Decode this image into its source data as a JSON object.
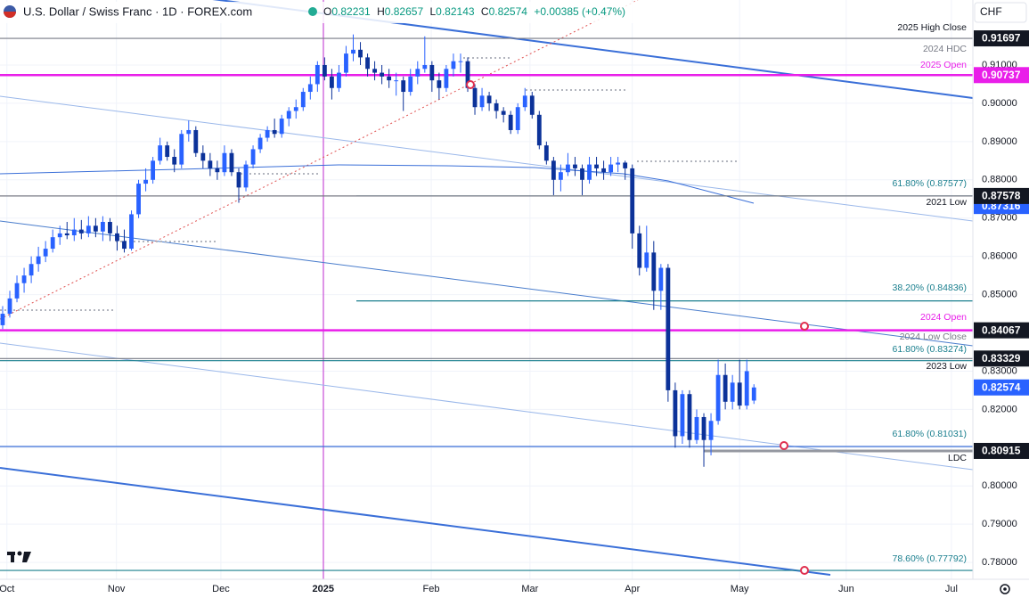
{
  "header": {
    "title": "U.S. Dollar / Swiss Franc · 1D · FOREX.com",
    "ohlc": [
      {
        "label": "O",
        "value": "0.82231"
      },
      {
        "label": "H",
        "value": "0.82657"
      },
      {
        "label": "L",
        "value": "0.82143"
      },
      {
        "label": "C",
        "value": "0.82574"
      }
    ],
    "change": "+0.00385 (+0.47%)",
    "currency": "CHF"
  },
  "chart_data": {
    "type": "candlestick",
    "up_color": "#2962ff",
    "down_color": "#0c3299",
    "grid": true,
    "ylim": [
      0.7756,
      0.927
    ],
    "yticks": [
      {
        "value": 0.91,
        "label": "0.91000"
      },
      {
        "value": 0.9,
        "label": "0.90000"
      },
      {
        "value": 0.89,
        "label": "0.89000"
      },
      {
        "value": 0.88,
        "label": "0.88000"
      },
      {
        "value": 0.87,
        "label": "0.87000"
      },
      {
        "value": 0.86,
        "label": "0.86000"
      },
      {
        "value": 0.85,
        "label": "0.85000"
      },
      {
        "value": 0.84,
        "label": "0.84000"
      },
      {
        "value": 0.83,
        "label": "0.83000"
      },
      {
        "value": 0.82,
        "label": "0.82000"
      },
      {
        "value": 0.81,
        "label": "0.81000"
      },
      {
        "value": 0.8,
        "label": "0.80000"
      },
      {
        "value": 0.79,
        "label": "0.79000"
      },
      {
        "value": 0.78,
        "label": "0.78000"
      }
    ],
    "xlim": [
      -0.37,
      135.6
    ],
    "xticks": [
      {
        "value": 0.6,
        "label": "Oct"
      },
      {
        "value": 15.9,
        "label": "Nov"
      },
      {
        "value": 30.5,
        "label": "Dec"
      },
      {
        "value": 44.8,
        "label": "2025"
      },
      {
        "value": 59.9,
        "label": "Feb"
      },
      {
        "value": 73.7,
        "label": "Mar"
      },
      {
        "value": 88.0,
        "label": "Apr"
      },
      {
        "value": 103.0,
        "label": "May"
      },
      {
        "value": 117.9,
        "label": "Jun"
      },
      {
        "value": 132.6,
        "label": "Jul"
      }
    ],
    "ohlc": [
      [
        0.842,
        0.847,
        0.841,
        0.845
      ],
      [
        0.845,
        0.851,
        0.844,
        0.849
      ],
      [
        0.849,
        0.855,
        0.848,
        0.853
      ],
      [
        0.853,
        0.857,
        0.8505,
        0.855
      ],
      [
        0.855,
        0.86,
        0.853,
        0.858
      ],
      [
        0.858,
        0.8625,
        0.856,
        0.86
      ],
      [
        0.86,
        0.864,
        0.8585,
        0.862
      ],
      [
        0.862,
        0.867,
        0.861,
        0.865
      ],
      [
        0.865,
        0.868,
        0.863,
        0.866
      ],
      [
        0.866,
        0.869,
        0.8645,
        0.8655
      ],
      [
        0.8655,
        0.87,
        0.864,
        0.867
      ],
      [
        0.867,
        0.8695,
        0.8645,
        0.866
      ],
      [
        0.866,
        0.8705,
        0.865,
        0.868
      ],
      [
        0.868,
        0.87,
        0.865,
        0.8665
      ],
      [
        0.8665,
        0.8705,
        0.864,
        0.869
      ],
      [
        0.869,
        0.87,
        0.864,
        0.866
      ],
      [
        0.866,
        0.868,
        0.8615,
        0.864
      ],
      [
        0.864,
        0.867,
        0.861,
        0.862
      ],
      [
        0.862,
        0.872,
        0.8615,
        0.871
      ],
      [
        0.871,
        0.88,
        0.87,
        0.879
      ],
      [
        0.879,
        0.883,
        0.877,
        0.88
      ],
      [
        0.88,
        0.886,
        0.879,
        0.885
      ],
      [
        0.885,
        0.891,
        0.884,
        0.889
      ],
      [
        0.889,
        0.89,
        0.885,
        0.886
      ],
      [
        0.886,
        0.888,
        0.882,
        0.884
      ],
      [
        0.884,
        0.893,
        0.883,
        0.892
      ],
      [
        0.892,
        0.8955,
        0.89,
        0.893
      ],
      [
        0.893,
        0.894,
        0.886,
        0.887
      ],
      [
        0.887,
        0.889,
        0.883,
        0.885
      ],
      [
        0.885,
        0.887,
        0.881,
        0.883
      ],
      [
        0.883,
        0.885,
        0.88,
        0.882
      ],
      [
        0.882,
        0.889,
        0.881,
        0.887
      ],
      [
        0.887,
        0.888,
        0.881,
        0.882
      ],
      [
        0.882,
        0.883,
        0.874,
        0.878
      ],
      [
        0.878,
        0.885,
        0.877,
        0.884
      ],
      [
        0.884,
        0.889,
        0.883,
        0.888
      ],
      [
        0.888,
        0.892,
        0.887,
        0.891
      ],
      [
        0.891,
        0.894,
        0.89,
        0.893
      ],
      [
        0.893,
        0.896,
        0.891,
        0.892
      ],
      [
        0.892,
        0.897,
        0.891,
        0.896
      ],
      [
        0.896,
        0.899,
        0.894,
        0.898
      ],
      [
        0.898,
        0.901,
        0.896,
        0.899
      ],
      [
        0.899,
        0.904,
        0.898,
        0.903
      ],
      [
        0.903,
        0.907,
        0.901,
        0.905
      ],
      [
        0.905,
        0.911,
        0.903,
        0.91
      ],
      [
        0.91,
        0.912,
        0.906,
        0.907
      ],
      [
        0.907,
        0.909,
        0.901,
        0.904
      ],
      [
        0.904,
        0.91,
        0.903,
        0.908
      ],
      [
        0.908,
        0.915,
        0.907,
        0.913
      ],
      [
        0.913,
        0.918,
        0.911,
        0.914
      ],
      [
        0.914,
        0.916,
        0.91,
        0.912
      ],
      [
        0.912,
        0.913,
        0.907,
        0.909
      ],
      [
        0.909,
        0.911,
        0.906,
        0.908
      ],
      [
        0.908,
        0.91,
        0.905,
        0.907
      ],
      [
        0.907,
        0.909,
        0.904,
        0.906
      ],
      [
        0.906,
        0.908,
        0.902,
        0.906
      ],
      [
        0.906,
        0.907,
        0.898,
        0.903
      ],
      [
        0.903,
        0.909,
        0.902,
        0.907
      ],
      [
        0.907,
        0.911,
        0.905,
        0.909
      ],
      [
        0.909,
        0.9175,
        0.908,
        0.91
      ],
      [
        0.91,
        0.911,
        0.903,
        0.906
      ],
      [
        0.906,
        0.908,
        0.901,
        0.904
      ],
      [
        0.904,
        0.91,
        0.903,
        0.909
      ],
      [
        0.909,
        0.913,
        0.907,
        0.911
      ],
      [
        0.911,
        0.913,
        0.908,
        0.911
      ],
      [
        0.911,
        0.912,
        0.903,
        0.904
      ],
      [
        0.904,
        0.905,
        0.897,
        0.899
      ],
      [
        0.899,
        0.904,
        0.898,
        0.902
      ],
      [
        0.902,
        0.903,
        0.898,
        0.9
      ],
      [
        0.9,
        0.901,
        0.896,
        0.898
      ],
      [
        0.898,
        0.899,
        0.895,
        0.897
      ],
      [
        0.897,
        0.898,
        0.892,
        0.893
      ],
      [
        0.893,
        0.9,
        0.892,
        0.899
      ],
      [
        0.899,
        0.904,
        0.898,
        0.902
      ],
      [
        0.902,
        0.903,
        0.896,
        0.897
      ],
      [
        0.897,
        0.898,
        0.888,
        0.889
      ],
      [
        0.889,
        0.89,
        0.884,
        0.885
      ],
      [
        0.885,
        0.886,
        0.876,
        0.88
      ],
      [
        0.88,
        0.884,
        0.877,
        0.882
      ],
      [
        0.882,
        0.887,
        0.881,
        0.884
      ],
      [
        0.884,
        0.886,
        0.881,
        0.883
      ],
      [
        0.883,
        0.884,
        0.876,
        0.88
      ],
      [
        0.88,
        0.886,
        0.879,
        0.884
      ],
      [
        0.884,
        0.886,
        0.881,
        0.883
      ],
      [
        0.883,
        0.885,
        0.88,
        0.882
      ],
      [
        0.882,
        0.886,
        0.881,
        0.884
      ],
      [
        0.884,
        0.886,
        0.882,
        0.8845
      ],
      [
        0.8845,
        0.885,
        0.88,
        0.883
      ],
      [
        0.883,
        0.884,
        0.862,
        0.866
      ],
      [
        0.866,
        0.868,
        0.855,
        0.857
      ],
      [
        0.857,
        0.868,
        0.856,
        0.861
      ],
      [
        0.861,
        0.864,
        0.846,
        0.851
      ],
      [
        0.851,
        0.858,
        0.846,
        0.857
      ],
      [
        0.857,
        0.858,
        0.822,
        0.825
      ],
      [
        0.825,
        0.827,
        0.81,
        0.813
      ],
      [
        0.813,
        0.825,
        0.811,
        0.824
      ],
      [
        0.824,
        0.825,
        0.81,
        0.812
      ],
      [
        0.812,
        0.82,
        0.811,
        0.818
      ],
      [
        0.818,
        0.819,
        0.805,
        0.812
      ],
      [
        0.812,
        0.819,
        0.808,
        0.817
      ],
      [
        0.817,
        0.833,
        0.816,
        0.829
      ],
      [
        0.829,
        0.832,
        0.82,
        0.822
      ],
      [
        0.822,
        0.829,
        0.82,
        0.827
      ],
      [
        0.827,
        0.833,
        0.82,
        0.821
      ],
      [
        0.821,
        0.833,
        0.82,
        0.83
      ],
      [
        0.82231,
        0.82657,
        0.82143,
        0.82574
      ]
    ],
    "levels": [
      {
        "price": 0.91697,
        "color": "#787b86",
        "style": "full"
      },
      {
        "price": 0.90737,
        "color": "#e91ee9",
        "style": "thick"
      },
      {
        "price": 0.87577,
        "color": "#1a7f8e",
        "style": "fib"
      },
      {
        "price": 0.87578,
        "color": "#787b86",
        "style": "full"
      },
      {
        "price": 0.84836,
        "color": "#1a7f8e",
        "style": "fib"
      },
      {
        "price": 0.84067,
        "color": "#e91ee9",
        "style": "thick"
      },
      {
        "price": 0.83329,
        "color": "#787b86",
        "style": "full"
      },
      {
        "price": 0.83274,
        "color": "#1a7f8e",
        "style": "full"
      },
      {
        "price": 0.81031,
        "color": "#3a6fd8",
        "style": "full"
      },
      {
        "price": 0.80915,
        "color": "#9598a1",
        "style": "short"
      },
      {
        "price": 0.77792,
        "color": "#1a7f8e",
        "style": "full"
      }
    ],
    "price_boxes": [
      {
        "value": 0.91697,
        "label": "0.91697",
        "color": "#131722"
      },
      {
        "value": 0.90737,
        "label": "0.90737",
        "color": "#e91ee9"
      },
      {
        "value": 0.87316,
        "label": "0.87316",
        "color": "#2962ff"
      },
      {
        "value": 0.87578,
        "label": "0.87578",
        "color": "#131722"
      },
      {
        "value": 0.84067,
        "label": "0.84067",
        "color": "#131722"
      },
      {
        "value": 0.83329,
        "label": "0.83329",
        "color": "#131722"
      },
      {
        "value": 0.82574,
        "label": "0.82574",
        "color": "#2962ff"
      },
      {
        "value": 0.80915,
        "label": "0.80915",
        "color": "#131722"
      }
    ],
    "annotations": [
      "2025 High Close",
      "2024 HDC",
      "2025 Open",
      "61.80% (0.87577)",
      "2021 Low",
      "38.20% (0.84836)",
      "2024 Open",
      "2024 Low Close",
      "61.80% (0.83274)",
      "2023 Low",
      "61.80% (0.81031)",
      "LDC",
      "78.60% (0.77792)"
    ]
  }
}
